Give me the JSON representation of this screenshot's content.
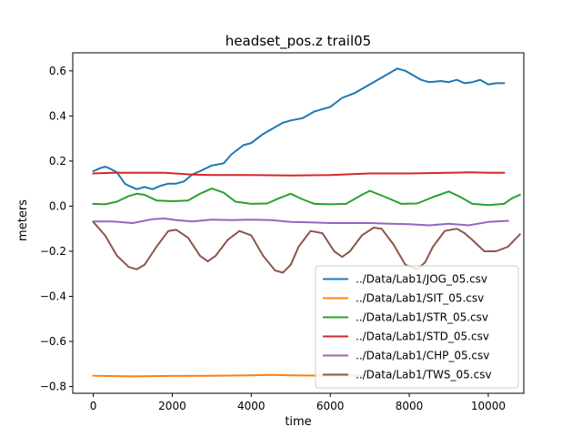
{
  "chart_data": {
    "type": "line",
    "title": "headset_pos.z trail05",
    "xlabel": "time",
    "ylabel": "meters",
    "xlim": [
      -520,
      10900
    ],
    "ylim": [
      -0.83,
      0.68
    ],
    "xticks": [
      0,
      2000,
      4000,
      6000,
      8000,
      10000
    ],
    "yticks": [
      -0.8,
      -0.6,
      -0.4,
      -0.2,
      0.0,
      0.2,
      0.4,
      0.6
    ],
    "xtick_labels": [
      "0",
      "2000",
      "4000",
      "6000",
      "8000",
      "10000"
    ],
    "ytick_labels": [
      "−0.8",
      "−0.6",
      "−0.4",
      "−0.2",
      "0.0",
      "0.2",
      "0.4",
      "0.6"
    ],
    "grid": false,
    "legend_position": "lower-right",
    "series": [
      {
        "name": "../Data/Lab1/JOG_05.csv",
        "color": "#1f77b4",
        "x": [
          0,
          200,
          300,
          400,
          600,
          800,
          900,
          1100,
          1300,
          1500,
          1700,
          1900,
          2100,
          2300,
          2500,
          2700,
          3000,
          3300,
          3500,
          3800,
          4000,
          4300,
          4600,
          4800,
          5000,
          5300,
          5600,
          6000,
          6300,
          6600,
          7000,
          7200,
          7500,
          7700,
          7900,
          8100,
          8300,
          8500,
          8800,
          9000,
          9200,
          9400,
          9600,
          9800,
          10000,
          10200,
          10400
        ],
        "y": [
          0.155,
          0.17,
          0.175,
          0.168,
          0.15,
          0.1,
          0.09,
          0.075,
          0.085,
          0.075,
          0.09,
          0.1,
          0.1,
          0.11,
          0.14,
          0.155,
          0.18,
          0.19,
          0.23,
          0.27,
          0.28,
          0.32,
          0.35,
          0.37,
          0.38,
          0.39,
          0.42,
          0.44,
          0.48,
          0.5,
          0.54,
          0.56,
          0.59,
          0.61,
          0.6,
          0.58,
          0.56,
          0.55,
          0.555,
          0.55,
          0.56,
          0.545,
          0.55,
          0.56,
          0.54,
          0.545,
          0.545
        ]
      },
      {
        "name": "../Data/Lab1/SIT_05.csv",
        "color": "#ff7f0e",
        "x": [
          0,
          1000,
          2000,
          3000,
          4000,
          4500,
          5000,
          6000,
          7000,
          7600
        ],
        "y": [
          -0.752,
          -0.755,
          -0.753,
          -0.752,
          -0.75,
          -0.748,
          -0.75,
          -0.752,
          -0.75,
          -0.748
        ]
      },
      {
        "name": "../Data/Lab1/STR_05.csv",
        "color": "#2ca02c",
        "x": [
          0,
          300,
          600,
          900,
          1100,
          1300,
          1600,
          2000,
          2400,
          2700,
          3000,
          3300,
          3600,
          4000,
          4400,
          4700,
          5000,
          5300,
          5600,
          6000,
          6400,
          6800,
          7000,
          7400,
          7800,
          8200,
          8600,
          9000,
          9300,
          9600,
          10000,
          10400,
          10600,
          10800
        ],
        "y": [
          0.01,
          0.008,
          0.02,
          0.045,
          0.055,
          0.05,
          0.025,
          0.022,
          0.025,
          0.055,
          0.078,
          0.06,
          0.02,
          0.01,
          0.012,
          0.035,
          0.055,
          0.03,
          0.01,
          0.008,
          0.01,
          0.05,
          0.068,
          0.04,
          0.01,
          0.012,
          0.04,
          0.065,
          0.04,
          0.01,
          0.005,
          0.01,
          0.035,
          0.05
        ]
      },
      {
        "name": "../Data/Lab1/STD_05.csv",
        "color": "#d62728",
        "x": [
          0,
          500,
          1000,
          1800,
          2500,
          3000,
          4000,
          5000,
          6000,
          7000,
          8000,
          9000,
          9500,
          10000,
          10400
        ],
        "y": [
          0.145,
          0.148,
          0.148,
          0.148,
          0.14,
          0.138,
          0.138,
          0.136,
          0.138,
          0.145,
          0.145,
          0.148,
          0.15,
          0.148,
          0.148
        ]
      },
      {
        "name": "../Data/Lab1/CHP_05.csv",
        "color": "#9467bd",
        "x": [
          0,
          500,
          1000,
          1500,
          1800,
          2100,
          2500,
          3000,
          3500,
          4000,
          4500,
          5000,
          5500,
          6000,
          6500,
          7000,
          7500,
          8000,
          8500,
          9000,
          9500,
          10000,
          10500
        ],
        "y": [
          -0.068,
          -0.068,
          -0.075,
          -0.058,
          -0.055,
          -0.062,
          -0.068,
          -0.06,
          -0.062,
          -0.06,
          -0.062,
          -0.07,
          -0.072,
          -0.075,
          -0.075,
          -0.075,
          -0.078,
          -0.08,
          -0.085,
          -0.078,
          -0.085,
          -0.07,
          -0.065
        ]
      },
      {
        "name": "../Data/Lab1/TWS_05.csv",
        "color": "#8c564b",
        "x": [
          0,
          300,
          600,
          900,
          1100,
          1300,
          1600,
          1900,
          2100,
          2400,
          2700,
          2900,
          3100,
          3400,
          3700,
          4000,
          4300,
          4600,
          4800,
          5000,
          5200,
          5500,
          5800,
          6100,
          6300,
          6500,
          6800,
          7100,
          7300,
          7600,
          7900,
          8200,
          8400,
          8600,
          8900,
          9200,
          9400,
          9600,
          9900,
          10200,
          10500,
          10800
        ],
        "y": [
          -0.07,
          -0.13,
          -0.22,
          -0.27,
          -0.28,
          -0.26,
          -0.18,
          -0.11,
          -0.105,
          -0.14,
          -0.22,
          -0.245,
          -0.22,
          -0.15,
          -0.11,
          -0.13,
          -0.22,
          -0.285,
          -0.295,
          -0.26,
          -0.18,
          -0.11,
          -0.12,
          -0.2,
          -0.225,
          -0.2,
          -0.13,
          -0.095,
          -0.1,
          -0.17,
          -0.26,
          -0.28,
          -0.25,
          -0.18,
          -0.11,
          -0.1,
          -0.12,
          -0.15,
          -0.2,
          -0.2,
          -0.18,
          -0.125
        ]
      }
    ]
  }
}
